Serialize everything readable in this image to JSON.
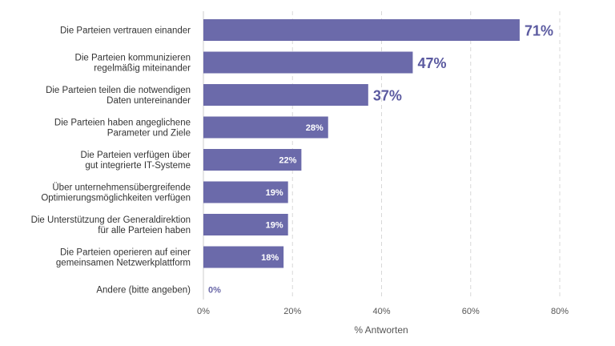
{
  "chart_data": {
    "type": "bar",
    "orientation": "horizontal",
    "categories": [
      [
        "Die Parteien vertrauen einander"
      ],
      [
        "Die Parteien kommunizieren",
        "regelmäßig miteinander"
      ],
      [
        "Die Parteien teilen die notwendigen",
        "Daten untereinander"
      ],
      [
        "Die Parteien haben angeglichene",
        "Parameter und Ziele"
      ],
      [
        "Die Parteien verfügen über",
        "gut integrierte IT-Systeme"
      ],
      [
        "Über unternehmensübergreifende",
        "Optimierungsmöglichkeiten verfügen"
      ],
      [
        "Die Unterstützung der Generaldirektion",
        "für alle Parteien haben"
      ],
      [
        "Die Parteien operieren auf einer",
        "gemeinsamen Netzwerkplattform"
      ],
      [
        "Andere (bitte angeben)"
      ]
    ],
    "values": [
      71,
      47,
      37,
      28,
      22,
      19,
      19,
      18,
      0
    ],
    "value_labels": [
      "71%",
      "47%",
      "37%",
      "28%",
      "22%",
      "19%",
      "19%",
      "18%",
      "0%"
    ],
    "xticks": [
      "0%",
      "20%",
      "40%",
      "60%",
      "80%"
    ],
    "xlim": [
      0,
      80
    ],
    "xlabel": "% Antworten",
    "title": "",
    "grid": "vertical dashed",
    "bar_color": "#6b6aaa"
  }
}
